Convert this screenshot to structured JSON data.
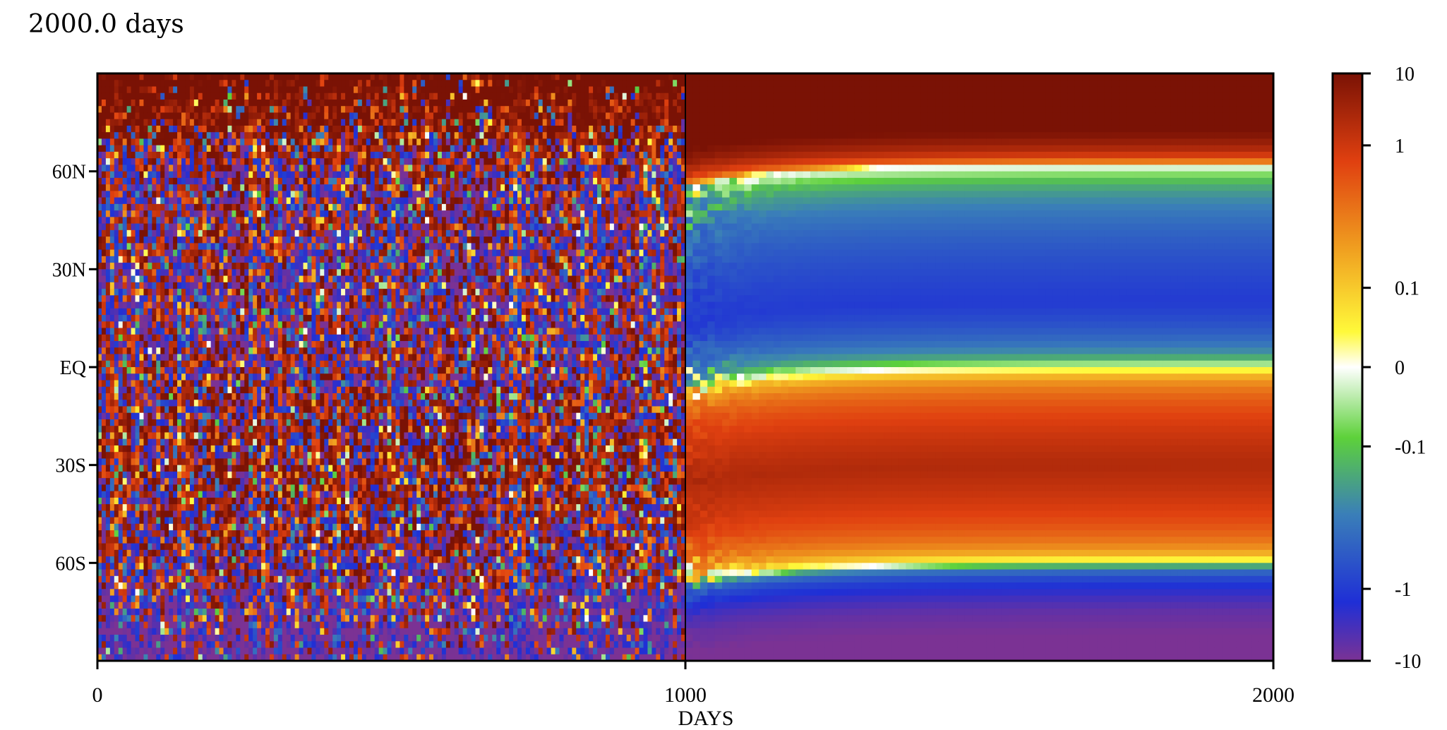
{
  "chart_data": {
    "type": "heatmap",
    "title": "2000.0 days",
    "xlabel": "DAYS",
    "ylabel": "",
    "xlim": [
      0,
      2000
    ],
    "x_ticks": [
      {
        "value": 0,
        "label": "0"
      },
      {
        "value": 1000,
        "label": "1000"
      },
      {
        "value": 2000,
        "label": "2000"
      }
    ],
    "ylim": [
      -90,
      90
    ],
    "y_ticks": [
      {
        "value": 60,
        "label": "60N"
      },
      {
        "value": 30,
        "label": "30N"
      },
      {
        "value": 0,
        "label": "EQ"
      },
      {
        "value": -30,
        "label": "30S"
      },
      {
        "value": -60,
        "label": "60S"
      }
    ],
    "divider_x": 1000,
    "colorbar": {
      "scale": "symmetric-log",
      "ticks": [
        {
          "value": 10,
          "label": "10"
        },
        {
          "value": 1,
          "label": "1"
        },
        {
          "value": 0.1,
          "label": "0.1"
        },
        {
          "value": 0,
          "label": "0"
        },
        {
          "value": -0.1,
          "label": "-0.1"
        },
        {
          "value": -1,
          "label": "-1"
        },
        {
          "value": -10,
          "label": "-10"
        }
      ],
      "colors": [
        "#7b3294",
        "#1f2fd6",
        "#3a7fb8",
        "#5dd13a",
        "#ffffff",
        "#fff93a",
        "#f0a020",
        "#e04010",
        "#7a1205"
      ]
    },
    "steady_state_profile": [
      {
        "lat": 90,
        "value": 8
      },
      {
        "lat": 75,
        "value": 4
      },
      {
        "lat": 62,
        "value": 0
      },
      {
        "lat": 45,
        "value": -0.4
      },
      {
        "lat": 20,
        "value": -1
      },
      {
        "lat": 0,
        "value": 0
      },
      {
        "lat": -30,
        "value": 1.5
      },
      {
        "lat": -60,
        "value": 0
      },
      {
        "lat": -75,
        "value": -2.5
      },
      {
        "lat": -90,
        "value": -4
      }
    ]
  }
}
